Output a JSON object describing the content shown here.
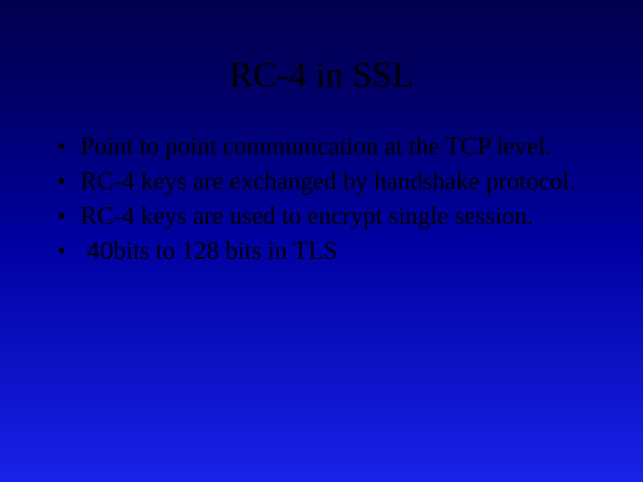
{
  "slide": {
    "background_gradient": {
      "from": "#000050",
      "mid": "#0000a0",
      "to": "#1922e8",
      "direction": "vertical"
    },
    "text_color": "#000000",
    "font_family": "Times New Roman",
    "title": {
      "text": "RC-4 in SSL",
      "fontsize": 40,
      "align": "center"
    },
    "bullets": {
      "fontsize": 28,
      "marker": "•",
      "items": [
        "Point to point communication at the TCP level.",
        "RC-4 keys are exchanged by handshake protocol.",
        "RC-4 keys are used to encrypt single session.",
        " 40bits to 128 bits in TLS"
      ],
      "last_item_prefix_number": "40",
      "last_item_prefix_font": "Arial"
    }
  }
}
